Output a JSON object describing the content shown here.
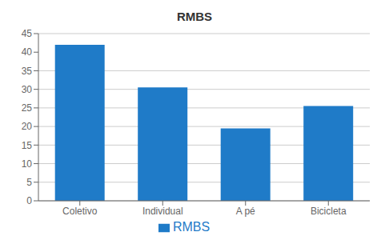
{
  "chart_data": {
    "type": "bar",
    "title": "RMBS",
    "categories": [
      "Coletivo",
      "Individual",
      "A pé",
      "Bicicleta"
    ],
    "series": [
      {
        "name": "RMBS",
        "color": "#1F7BC8",
        "values": [
          42.0,
          30.5,
          19.5,
          25.5
        ]
      }
    ],
    "ylim": [
      0,
      45
    ],
    "yticks": [
      0,
      5,
      10,
      15,
      20,
      25,
      30,
      35,
      40,
      45
    ],
    "grid": true,
    "legend": "bottom"
  }
}
